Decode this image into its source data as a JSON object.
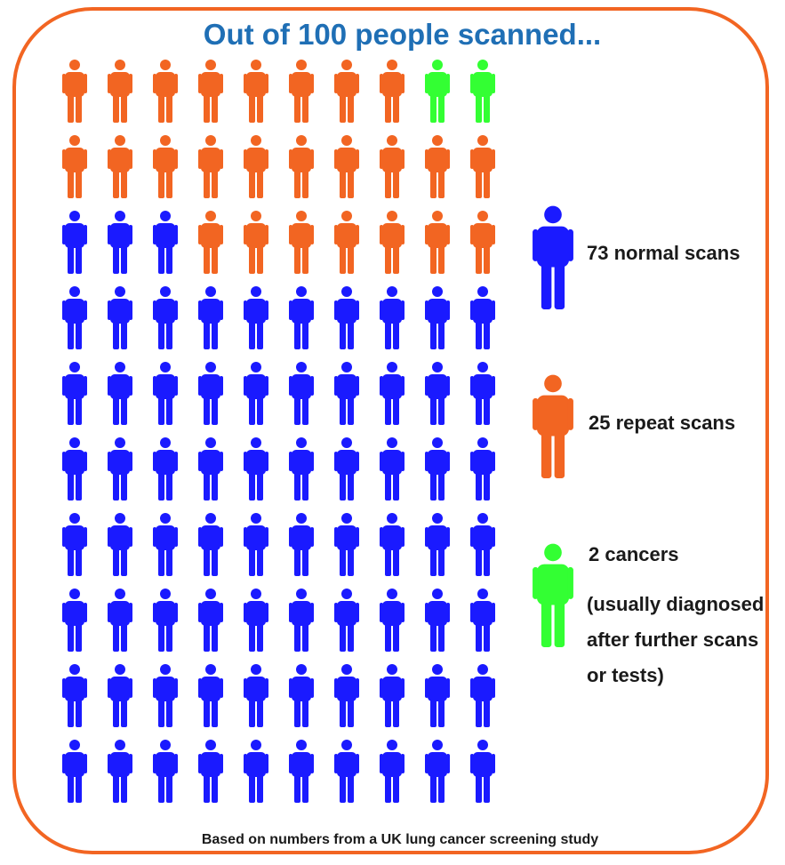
{
  "title": "Out of 100 people scanned...",
  "footer": "Based on numbers from a UK lung cancer screening study",
  "colors": {
    "normal": "#1a1aff",
    "repeat": "#f26522",
    "cancer": "#33ff33",
    "frame": "#f26522",
    "title": "#1f6fb5"
  },
  "chart_data": {
    "type": "pictograph",
    "total": 100,
    "rows": 10,
    "columns": 10,
    "categories": [
      {
        "key": "normal",
        "label": "73 normal scans",
        "count": 73
      },
      {
        "key": "repeat",
        "label": "25 repeat scans",
        "count": 25
      },
      {
        "key": "cancer",
        "label": "2 cancers",
        "count": 2,
        "note": "(usually diagnosed after further scans or tests)"
      }
    ],
    "grid": [
      [
        "repeat",
        "repeat",
        "repeat",
        "repeat",
        "repeat",
        "repeat",
        "repeat",
        "repeat",
        "cancer",
        "cancer"
      ],
      [
        "repeat",
        "repeat",
        "repeat",
        "repeat",
        "repeat",
        "repeat",
        "repeat",
        "repeat",
        "repeat",
        "repeat"
      ],
      [
        "normal",
        "normal",
        "normal",
        "repeat",
        "repeat",
        "repeat",
        "repeat",
        "repeat",
        "repeat",
        "repeat"
      ],
      [
        "normal",
        "normal",
        "normal",
        "normal",
        "normal",
        "normal",
        "normal",
        "normal",
        "normal",
        "normal"
      ],
      [
        "normal",
        "normal",
        "normal",
        "normal",
        "normal",
        "normal",
        "normal",
        "normal",
        "normal",
        "normal"
      ],
      [
        "normal",
        "normal",
        "normal",
        "normal",
        "normal",
        "normal",
        "normal",
        "normal",
        "normal",
        "normal"
      ],
      [
        "normal",
        "normal",
        "normal",
        "normal",
        "normal",
        "normal",
        "normal",
        "normal",
        "normal",
        "normal"
      ],
      [
        "normal",
        "normal",
        "normal",
        "normal",
        "normal",
        "normal",
        "normal",
        "normal",
        "normal",
        "normal"
      ],
      [
        "normal",
        "normal",
        "normal",
        "normal",
        "normal",
        "normal",
        "normal",
        "normal",
        "normal",
        "normal"
      ],
      [
        "normal",
        "normal",
        "normal",
        "normal",
        "normal",
        "normal",
        "normal",
        "normal",
        "normal",
        "normal"
      ]
    ]
  },
  "legend": {
    "normal_label": "73 normal scans",
    "repeat_label": "25 repeat scans",
    "cancer_label": "2 cancers",
    "cancer_note": "(usually diagnosed after further scans or tests)"
  }
}
